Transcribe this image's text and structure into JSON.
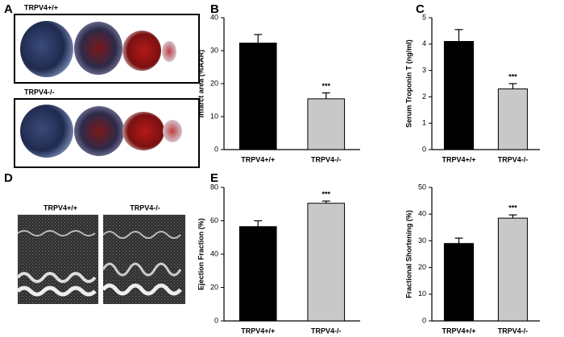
{
  "panels": {
    "a": "A",
    "b": "B",
    "c": "C",
    "d": "D",
    "e": "E"
  },
  "images": {
    "a_top": "TRPV4+/+",
    "a_bottom": "TRPV4-/-",
    "d_left": "TRPV4+/+",
    "d_right": "TRPV4-/-"
  },
  "chart_data": [
    {
      "type": "bar",
      "y_label": "Infarct area (%AAR)",
      "categories": [
        "TRPV4+/+",
        "TRPV4-/-"
      ],
      "values": [
        32.3,
        15.4
      ],
      "errors": [
        2.6,
        1.8
      ],
      "colors": [
        "#000000",
        "#c8c8c8"
      ],
      "value_annotations": [
        null,
        "***"
      ],
      "ylim": [
        0,
        40
      ],
      "yticks": [
        0,
        10,
        20,
        30,
        40
      ]
    },
    {
      "type": "bar",
      "y_label": "Serum Troponin T (ng/ml)",
      "categories": [
        "TRPV4+/+",
        "TRPV4-/-"
      ],
      "values": [
        4.1,
        2.3
      ],
      "errors": [
        0.45,
        0.2
      ],
      "colors": [
        "#000000",
        "#c8c8c8"
      ],
      "value_annotations": [
        null,
        "***"
      ],
      "ylim": [
        0,
        5
      ],
      "yticks": [
        0,
        1,
        2,
        3,
        4,
        5
      ]
    },
    {
      "type": "bar",
      "y_label": "Ejection Fraction (%)",
      "categories": [
        "TRPV4+/+",
        "TRPV4-/-"
      ],
      "values": [
        56.5,
        70.5
      ],
      "errors": [
        3.5,
        1.3
      ],
      "colors": [
        "#000000",
        "#c8c8c8"
      ],
      "value_annotations": [
        null,
        "***"
      ],
      "ylim": [
        0,
        80
      ],
      "yticks": [
        0,
        20,
        40,
        60,
        80
      ]
    },
    {
      "type": "bar",
      "y_label": "Fractional Shortening (%)",
      "categories": [
        "TRPV4+/+",
        "TRPV4-/-"
      ],
      "values": [
        29,
        38.5
      ],
      "errors": [
        2,
        1.2
      ],
      "colors": [
        "#000000",
        "#c8c8c8"
      ],
      "value_annotations": [
        null,
        "***"
      ],
      "ylim": [
        0,
        50
      ],
      "yticks": [
        0,
        10,
        20,
        30,
        40,
        50
      ]
    }
  ]
}
